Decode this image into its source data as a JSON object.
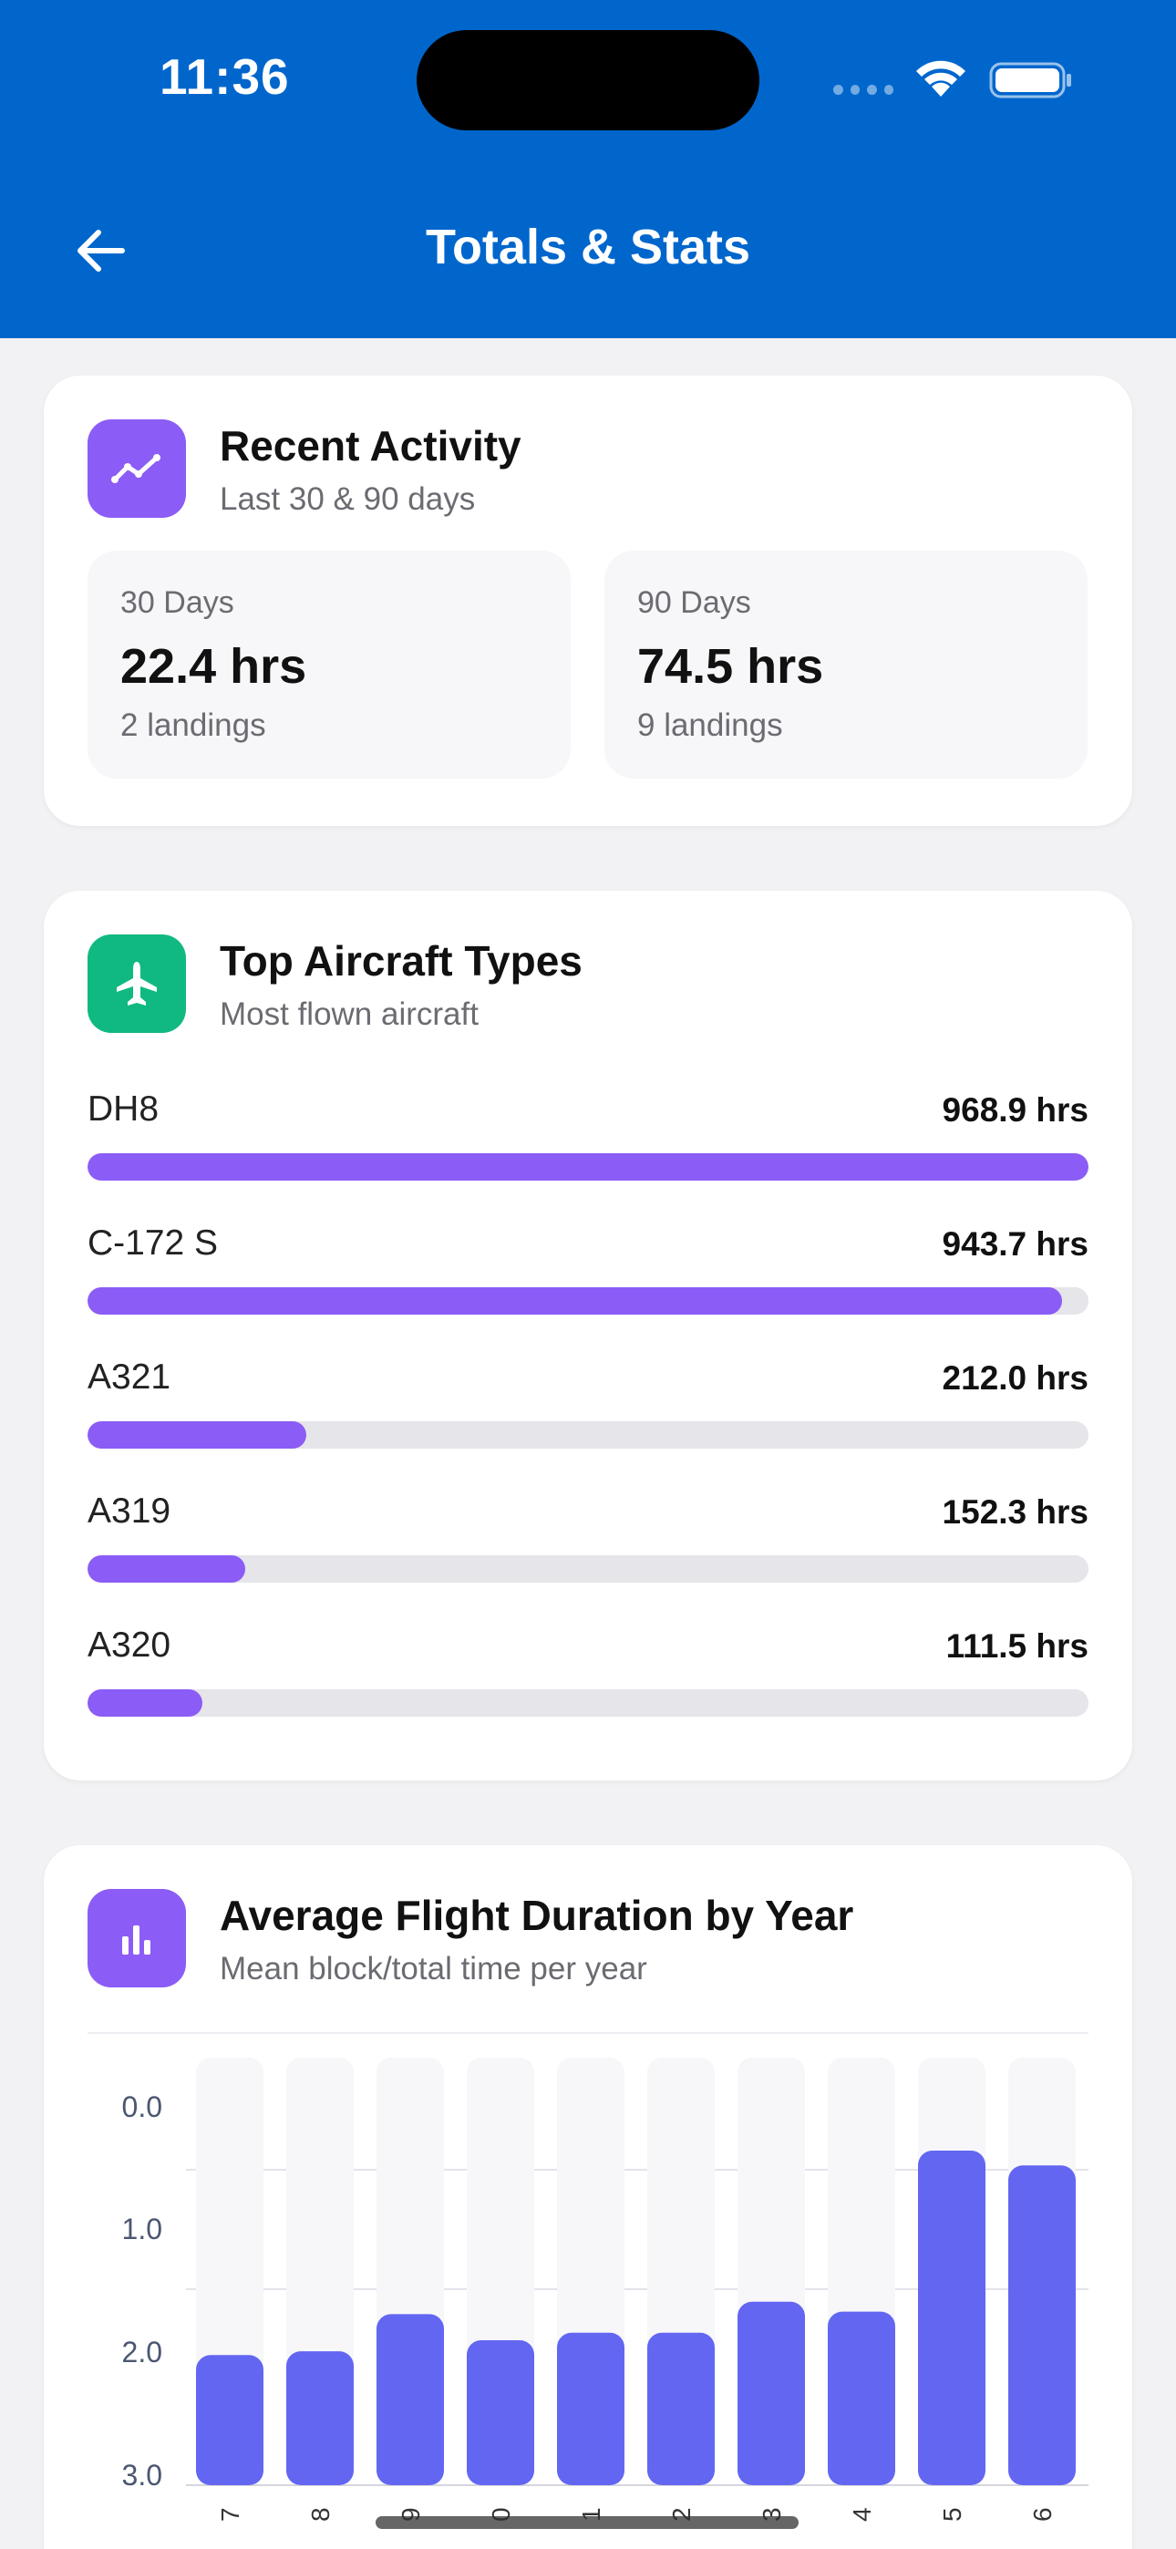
{
  "status_bar": {
    "time": "11:36"
  },
  "header": {
    "title": "Totals & Stats",
    "back_icon": "arrow-left-icon"
  },
  "colors": {
    "header_bg": "#0066cc",
    "purple": "#8b5cf6",
    "green": "#10b981",
    "indigo": "#6366f1"
  },
  "recent_activity": {
    "title": "Recent Activity",
    "subtitle": "Last 30 & 90 days",
    "icon": "activity-trend-icon",
    "boxes": [
      {
        "label": "30 Days",
        "value": "22.4 hrs",
        "sub": "2 landings"
      },
      {
        "label": "90 Days",
        "value": "74.5 hrs",
        "sub": "9 landings"
      }
    ]
  },
  "top_aircraft": {
    "title": "Top Aircraft Types",
    "subtitle": "Most flown aircraft",
    "icon": "airplane-icon",
    "items": [
      {
        "name": "DH8",
        "hours_label": "968.9 hrs",
        "hours": 968.9
      },
      {
        "name": "C-172 S",
        "hours_label": "943.7 hrs",
        "hours": 943.7
      },
      {
        "name": "A321",
        "hours_label": "212.0 hrs",
        "hours": 212.0
      },
      {
        "name": "A319",
        "hours_label": "152.3 hrs",
        "hours": 152.3
      },
      {
        "name": "A320",
        "hours_label": "111.5 hrs",
        "hours": 111.5
      }
    ]
  },
  "avg_duration": {
    "title": "Average Flight Duration by Year",
    "subtitle": "Mean block/total time per year",
    "icon": "bar-chart-icon"
  },
  "chart_data": {
    "type": "bar",
    "categories": [
      "7",
      "8",
      "9",
      "0",
      "1",
      "2",
      "3",
      "4",
      "5",
      "6"
    ],
    "values": [
      1.05,
      1.08,
      1.38,
      1.17,
      1.23,
      1.23,
      1.48,
      1.4,
      2.7,
      2.58
    ],
    "ytick_labels": [
      "0.0",
      "1.0",
      "2.0",
      "3.0"
    ],
    "ylim": [
      0,
      3.45
    ],
    "grid": true
  }
}
